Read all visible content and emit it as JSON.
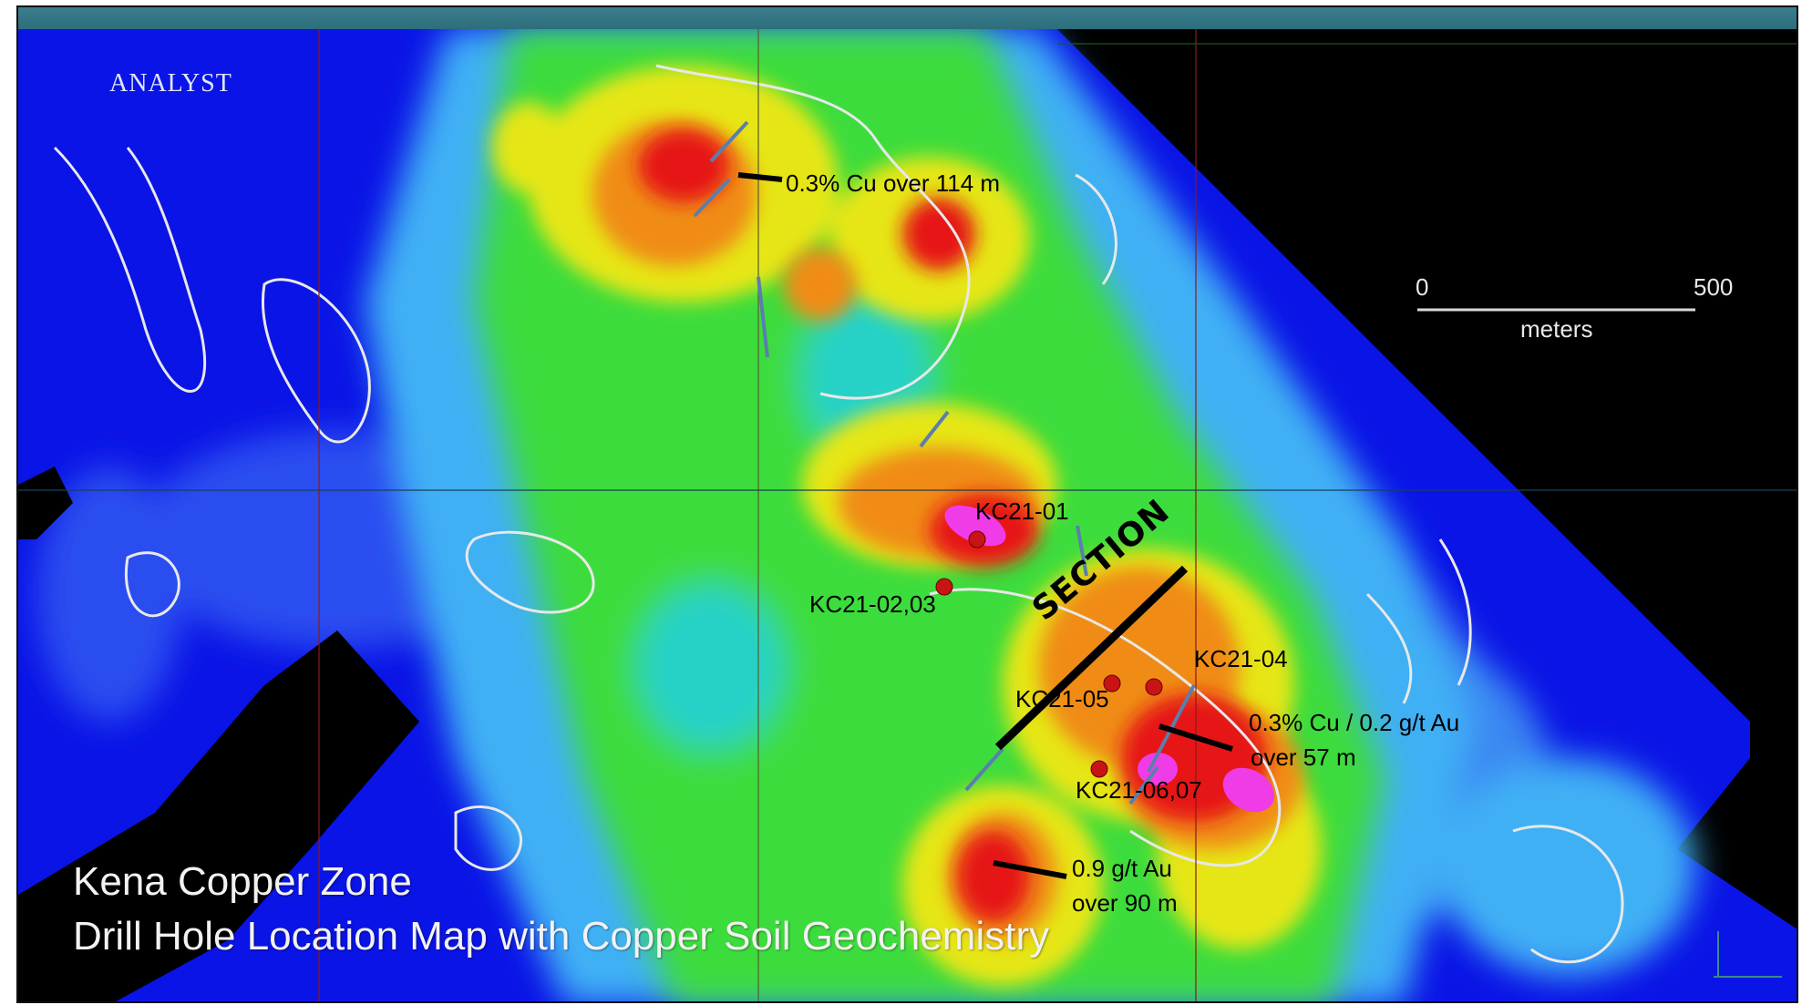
{
  "map": {
    "title_line1": "Kena Copper Zone",
    "title_line2": "Drill Hole Location Map with Copper Soil Geochemistry",
    "section_label": "SECTION",
    "logo_text": "ANALYST",
    "scale": {
      "start": "0",
      "end": "500",
      "unit": "meters"
    },
    "drill_holes": [
      {
        "name": "KC21-01"
      },
      {
        "name": "KC21-02,03"
      },
      {
        "name": "KC21-04"
      },
      {
        "name": "KC21-05"
      },
      {
        "name": "KC21-06,07"
      }
    ],
    "annotations": {
      "north": "0.3% Cu over 114 m",
      "east_line1": "0.3% Cu / 0.2 g/t Au",
      "east_line2": "over 57 m",
      "south_line1": "0.9 g/t Au",
      "south_line2": "over 90 m"
    },
    "colors": {
      "background_low": "#0a14e6",
      "low": "#1e3cf0",
      "low_mid": "#3fa0f5",
      "mid": "#28d2c8",
      "mid_high": "#3cdc3c",
      "high": "#e6e614",
      "very_high": "#f08c14",
      "peak": "#e61414",
      "extreme": "#f03ce6",
      "no_data": "#000000",
      "contour": "#e8e8e8"
    }
  }
}
